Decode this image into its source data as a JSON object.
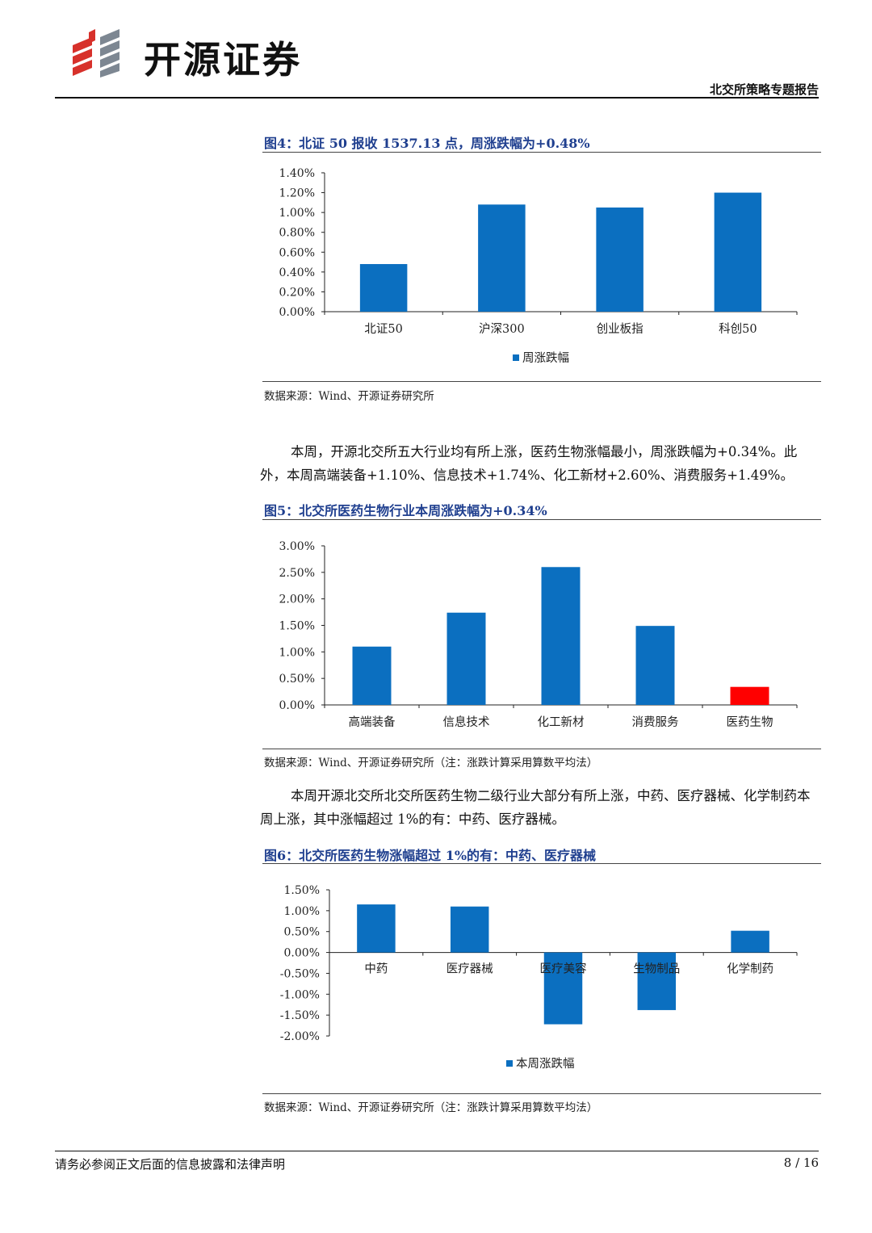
{
  "header": {
    "company": "开源证券",
    "report_title": "北交所策略专题报告"
  },
  "fig4": {
    "title": "图4：北证 50 报收 1537.13 点，周涨跌幅为+0.48%",
    "source": "数据来源：Wind、开源证券研究所",
    "chart_data": {
      "type": "bar",
      "categories": [
        "北证50",
        "沪深300",
        "创业板指",
        "科创50"
      ],
      "series": [
        {
          "name": "周涨跌幅",
          "values": [
            0.48,
            1.08,
            1.05,
            1.2
          ],
          "color": "#0b6fc0"
        }
      ],
      "unit": "%",
      "ylim": [
        0,
        1.4
      ],
      "yticks": [
        "0.00%",
        "0.20%",
        "0.40%",
        "0.60%",
        "0.80%",
        "1.00%",
        "1.20%",
        "1.40%"
      ],
      "legend": "bottom-center"
    }
  },
  "para1": "本周，开源北交所五大行业均有所上涨，医药生物涨幅最小，周涨跌幅为+0.34%。此外，本周高端装备+1.10%、信息技术+1.74%、化工新材+2.60%、消费服务+1.49%。",
  "fig5": {
    "title": "图5：北交所医药生物行业本周涨跌幅为+0.34%",
    "source": "数据来源：Wind、开源证券研究所（注：涨跌计算采用算数平均法）",
    "chart_data": {
      "type": "bar",
      "categories": [
        "高端装备",
        "信息技术",
        "化工新材",
        "消费服务",
        "医药生物"
      ],
      "series": [
        {
          "values": [
            1.1,
            1.74,
            2.6,
            1.49,
            0.34
          ]
        }
      ],
      "colors": [
        "#0b6fc0",
        "#0b6fc0",
        "#0b6fc0",
        "#0b6fc0",
        "#ff0000"
      ],
      "unit": "%",
      "ylim": [
        0,
        3.0
      ],
      "yticks": [
        "0.00%",
        "0.50%",
        "1.00%",
        "1.50%",
        "2.00%",
        "2.50%",
        "3.00%"
      ]
    }
  },
  "para2": "本周开源北交所北交所医药生物二级行业大部分有所上涨，中药、医疗器械、化学制药本周上涨，其中涨幅超过 1%的有：中药、医疗器械。",
  "fig6": {
    "title": "图6：北交所医药生物涨幅超过 1%的有：中药、医疗器械",
    "source": "数据来源：Wind、开源证券研究所（注：涨跌计算采用算数平均法）",
    "chart_data": {
      "type": "bar",
      "categories": [
        "中药",
        "医疗器械",
        "医疗美容",
        "生物制品",
        "化学制药"
      ],
      "series": [
        {
          "name": "本周涨跌幅",
          "values": [
            1.15,
            1.1,
            -1.72,
            -1.38,
            0.52
          ],
          "color": "#0b6fc0"
        }
      ],
      "unit": "%",
      "ylim": [
        -2.0,
        1.5
      ],
      "yticks": [
        "-2.00%",
        "-1.50%",
        "-1.00%",
        "-0.50%",
        "0.00%",
        "0.50%",
        "1.00%",
        "1.50%"
      ],
      "legend": "bottom-center"
    }
  },
  "footer": {
    "disclaimer": "请务必参阅正文后面的信息披露和法律声明",
    "page": "8 / 16"
  }
}
